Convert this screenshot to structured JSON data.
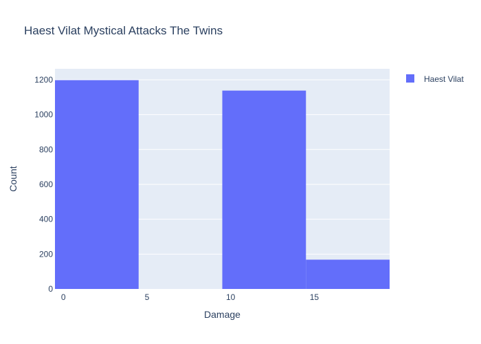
{
  "chart_data": {
    "type": "bar",
    "title": "Haest Vilat Mystical Attacks The Twins",
    "xlabel": "Damage",
    "ylabel": "Count",
    "xlim": [
      -0.5,
      19.5
    ],
    "ylim": [
      0,
      1263
    ],
    "xticks": [
      0,
      5,
      10,
      15
    ],
    "yticks": [
      0,
      200,
      400,
      600,
      800,
      1000,
      1200
    ],
    "grid": true,
    "legend_position": "top-right",
    "series": [
      {
        "name": "Haest Vilat",
        "color": "#636efa",
        "bins": [
          {
            "x0": -0.5,
            "x1": 4.5,
            "count": 1198
          },
          {
            "x0": 4.5,
            "x1": 9.5,
            "count": 0
          },
          {
            "x0": 9.5,
            "x1": 14.5,
            "count": 1138
          },
          {
            "x0": 14.5,
            "x1": 19.5,
            "count": 168
          }
        ]
      }
    ]
  },
  "colors": {
    "plot_bg": "#e5ecf6",
    "grid": "#ffffff",
    "text": "#2a3f5f"
  }
}
